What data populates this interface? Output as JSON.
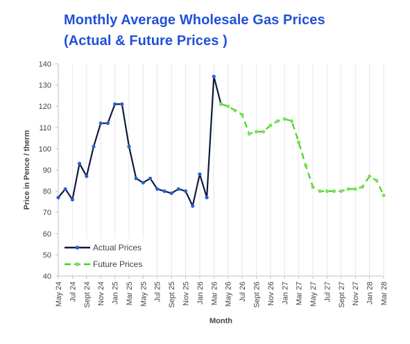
{
  "chart_data": {
    "type": "line",
    "title_line1": "Monthly Average Wholesale Gas Prices",
    "title_line2": "(Actual & Future Prices )",
    "xlabel": "Month",
    "ylabel": "Price in Pence / therm",
    "ylim": [
      40,
      140
    ],
    "yticks": [
      40,
      50,
      60,
      70,
      80,
      90,
      100,
      110,
      120,
      130,
      140
    ],
    "grid": "vertical",
    "legend_position": "bottom-left",
    "x_tick_labels": [
      "May 24",
      "Jul 24",
      "Sept 24",
      "Nov 24",
      "Jan 25",
      "Mar 25",
      "May 25",
      "Jul 25",
      "Sept 25",
      "Nov 25",
      "Jan 26",
      "Mar 26",
      "May 26",
      "Jul 26",
      "Sept 26",
      "Nov 26",
      "Jan 27",
      "Mar 27",
      "May 27",
      "Jul 27",
      "Sept 27",
      "Nov 27",
      "Jan 28",
      "Mar 28"
    ],
    "series": [
      {
        "name": "Actual Prices",
        "color": "#0d1b3e",
        "marker_color": "#2a5fd6",
        "style": "solid",
        "x": [
          "May 24",
          "Jun 24",
          "Jul 24",
          "Aug 24",
          "Sep 24",
          "Oct 24",
          "Nov 24",
          "Dec 24",
          "Jan 25",
          "Feb 25",
          "Mar 25",
          "Apr 25",
          "May 25",
          "Jun 25",
          "Jul 25",
          "Aug 25",
          "Sep 25",
          "Oct 25",
          "Nov 25",
          "Dec 25",
          "Jan 26",
          "Feb 26",
          "Mar 26",
          "Apr 26"
        ],
        "values": [
          77,
          81,
          76,
          93,
          87,
          101,
          112,
          112,
          121,
          121,
          101,
          86,
          84,
          86,
          81,
          80,
          79,
          81,
          80,
          73,
          88,
          77,
          134,
          121
        ]
      },
      {
        "name": "Future Prices",
        "color": "#3dd424",
        "marker_color": "#7de05a",
        "style": "dashed",
        "x": [
          "Apr 26",
          "May 26",
          "Jun 26",
          "Jul 26",
          "Aug 26",
          "Sep 26",
          "Oct 26",
          "Nov 26",
          "Dec 26",
          "Jan 27",
          "Feb 27",
          "Mar 27",
          "Apr 27",
          "May 27",
          "Jun 27",
          "Jul 27",
          "Aug 27",
          "Sep 27",
          "Oct 27",
          "Nov 27",
          "Dec 27",
          "Jan 28",
          "Feb 28",
          "Mar 28"
        ],
        "values": [
          121,
          120,
          118,
          116,
          107,
          108,
          108,
          111,
          113,
          114,
          113,
          103,
          92,
          82,
          80,
          80,
          80,
          80,
          81,
          81,
          82,
          87,
          85,
          78
        ]
      }
    ]
  }
}
